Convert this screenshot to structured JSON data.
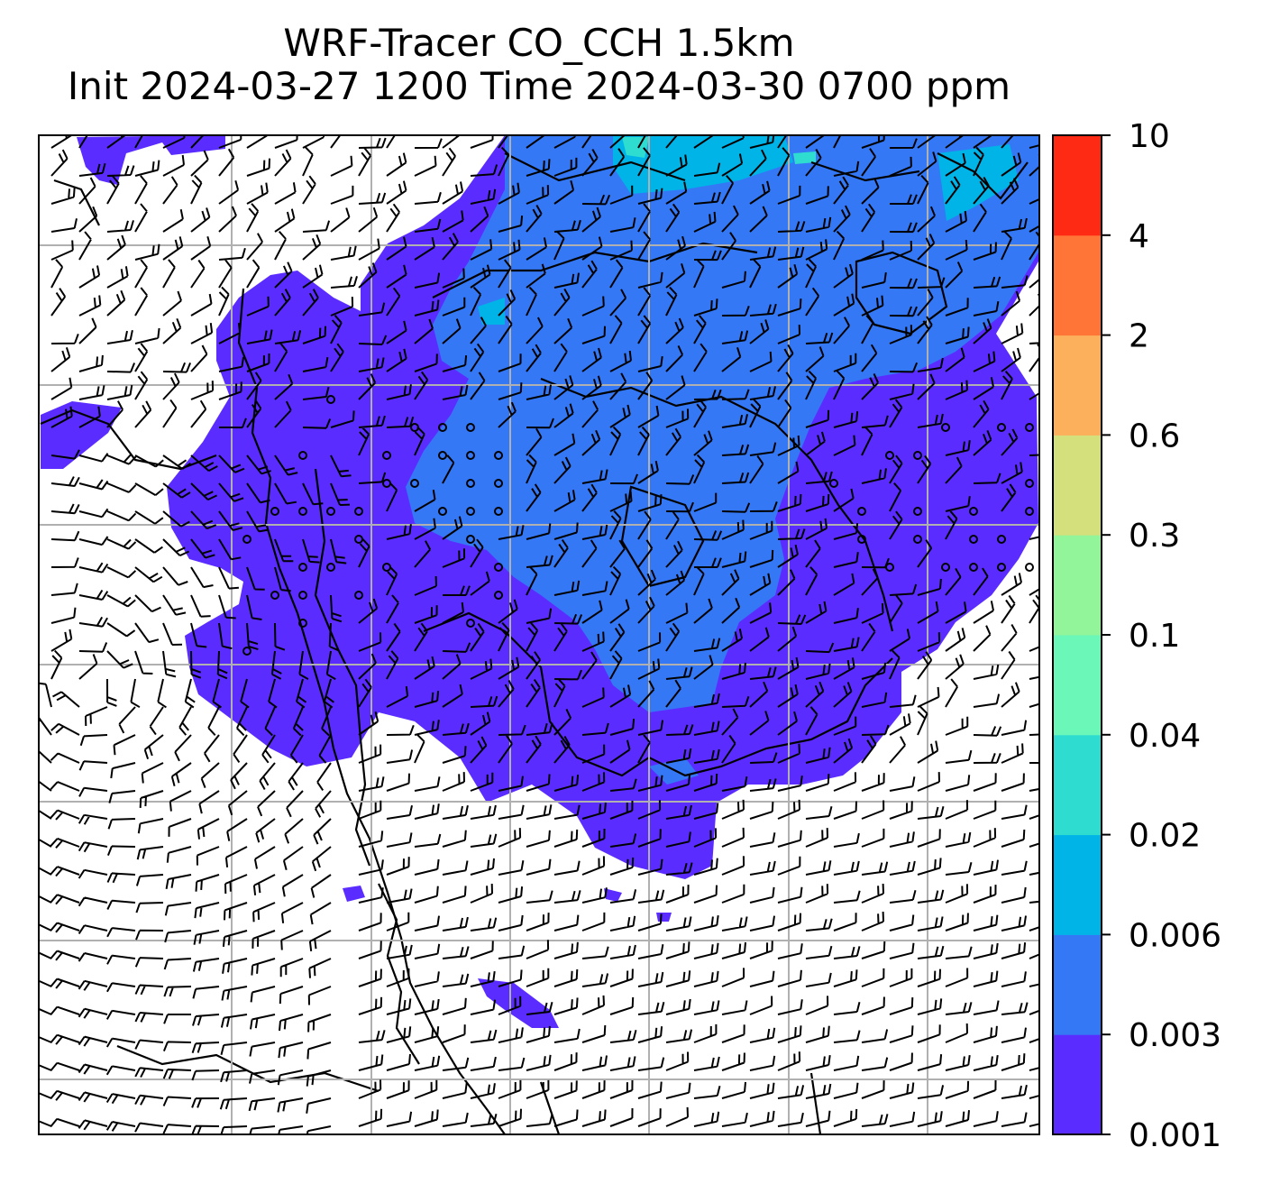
{
  "chart_data": {
    "type": "heatmap",
    "title_line1": "WRF-Tracer CO_CCH 1.5km",
    "title_line2": "Init 2024-03-27 1200 Time 2024-03-30 0700 ppm",
    "units": "ppm",
    "colorbar": {
      "levels": [
        "0.001",
        "0.003",
        "0.006",
        "0.02",
        "0.04",
        "0.1",
        "0.3",
        "0.6",
        "2",
        "4",
        "10"
      ],
      "colors": [
        "#5b2cff",
        "#3478f6",
        "#00b4e8",
        "#2fdcd0",
        "#6bf7b8",
        "#92f59a",
        "#d4e07c",
        "#fdb05c",
        "#ff7538",
        "#ff2a14"
      ]
    },
    "grid": true,
    "overlay": "wind barbs and coastlines"
  }
}
